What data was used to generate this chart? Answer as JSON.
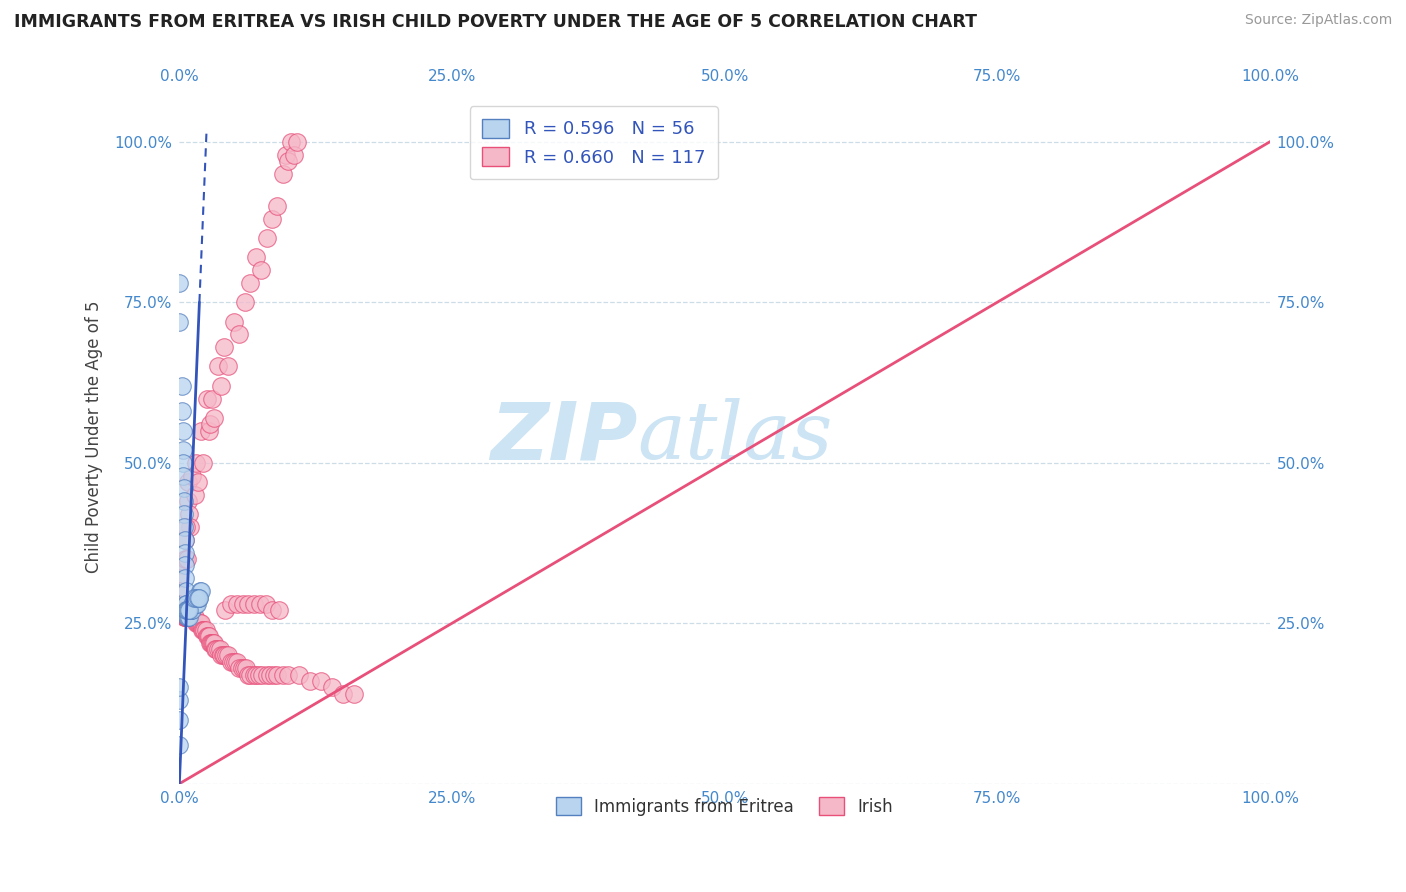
{
  "title": "IMMIGRANTS FROM ERITREA VS IRISH CHILD POVERTY UNDER THE AGE OF 5 CORRELATION CHART",
  "source": "Source: ZipAtlas.com",
  "ylabel": "Child Poverty Under the Age of 5",
  "legend_labels": [
    "Immigrants from Eritrea",
    "Irish"
  ],
  "eritrea_R": 0.596,
  "eritrea_N": 56,
  "irish_R": 0.66,
  "irish_N": 117,
  "eritrea_color": "#b8d4ee",
  "irish_color": "#f5b8c8",
  "eritrea_edge_color": "#5580c0",
  "irish_edge_color": "#e8507a",
  "eritrea_line_color": "#3355bb",
  "irish_line_color": "#e8507a",
  "background_color": "#ffffff",
  "watermark_color": "#cce4f4",
  "xlim": [
    0.0,
    1.0
  ],
  "ylim": [
    0.0,
    1.08
  ],
  "x_ticks": [
    0.0,
    0.25,
    0.5,
    0.75,
    1.0
  ],
  "y_ticks": [
    0.0,
    0.25,
    0.5,
    0.75,
    1.0
  ],
  "x_tick_labels": [
    "0.0%",
    "25.0%",
    "50.0%",
    "75.0%",
    "100.0%"
  ],
  "y_tick_labels": [
    "",
    "25.0%",
    "50.0%",
    "75.0%",
    "100.0%"
  ],
  "eritrea_line": [
    [
      0.0,
      0.0
    ],
    [
      0.025,
      1.02
    ]
  ],
  "irish_line": [
    [
      0.0,
      0.0
    ],
    [
      1.0,
      1.0
    ]
  ],
  "eritrea_points": [
    [
      0.0,
      0.78
    ],
    [
      0.0,
      0.72
    ],
    [
      0.002,
      0.62
    ],
    [
      0.002,
      0.58
    ],
    [
      0.003,
      0.55
    ],
    [
      0.003,
      0.52
    ],
    [
      0.003,
      0.5
    ],
    [
      0.003,
      0.48
    ],
    [
      0.004,
      0.46
    ],
    [
      0.004,
      0.44
    ],
    [
      0.004,
      0.42
    ],
    [
      0.004,
      0.4
    ],
    [
      0.005,
      0.38
    ],
    [
      0.005,
      0.36
    ],
    [
      0.005,
      0.34
    ],
    [
      0.005,
      0.32
    ],
    [
      0.006,
      0.3
    ],
    [
      0.006,
      0.28
    ],
    [
      0.006,
      0.28
    ],
    [
      0.007,
      0.27
    ],
    [
      0.007,
      0.27
    ],
    [
      0.007,
      0.26
    ],
    [
      0.008,
      0.26
    ],
    [
      0.008,
      0.27
    ],
    [
      0.009,
      0.27
    ],
    [
      0.009,
      0.26
    ],
    [
      0.01,
      0.27
    ],
    [
      0.01,
      0.27
    ],
    [
      0.01,
      0.27
    ],
    [
      0.011,
      0.27
    ],
    [
      0.011,
      0.27
    ],
    [
      0.012,
      0.27
    ],
    [
      0.012,
      0.28
    ],
    [
      0.013,
      0.28
    ],
    [
      0.013,
      0.28
    ],
    [
      0.014,
      0.28
    ],
    [
      0.014,
      0.28
    ],
    [
      0.015,
      0.28
    ],
    [
      0.016,
      0.28
    ],
    [
      0.016,
      0.29
    ],
    [
      0.017,
      0.29
    ],
    [
      0.018,
      0.29
    ],
    [
      0.019,
      0.3
    ],
    [
      0.02,
      0.3
    ],
    [
      0.0,
      0.06
    ],
    [
      0.0,
      0.1
    ],
    [
      0.0,
      0.13
    ],
    [
      0.0,
      0.15
    ],
    [
      0.006,
      0.27
    ],
    [
      0.007,
      0.27
    ],
    [
      0.008,
      0.27
    ],
    [
      0.009,
      0.27
    ],
    [
      0.013,
      0.29
    ],
    [
      0.015,
      0.29
    ],
    [
      0.017,
      0.29
    ],
    [
      0.018,
      0.29
    ]
  ],
  "irish_points": [
    [
      0.0,
      0.34
    ],
    [
      0.0,
      0.32
    ],
    [
      0.0,
      0.3
    ],
    [
      0.0,
      0.28
    ],
    [
      0.002,
      0.27
    ],
    [
      0.003,
      0.27
    ],
    [
      0.003,
      0.27
    ],
    [
      0.004,
      0.26
    ],
    [
      0.005,
      0.26
    ],
    [
      0.005,
      0.26
    ],
    [
      0.006,
      0.26
    ],
    [
      0.006,
      0.26
    ],
    [
      0.007,
      0.26
    ],
    [
      0.007,
      0.26
    ],
    [
      0.008,
      0.26
    ],
    [
      0.008,
      0.26
    ],
    [
      0.009,
      0.26
    ],
    [
      0.01,
      0.26
    ],
    [
      0.01,
      0.26
    ],
    [
      0.011,
      0.26
    ],
    [
      0.012,
      0.26
    ],
    [
      0.012,
      0.26
    ],
    [
      0.013,
      0.26
    ],
    [
      0.014,
      0.26
    ],
    [
      0.015,
      0.25
    ],
    [
      0.016,
      0.25
    ],
    [
      0.017,
      0.25
    ],
    [
      0.018,
      0.25
    ],
    [
      0.019,
      0.25
    ],
    [
      0.02,
      0.25
    ],
    [
      0.021,
      0.24
    ],
    [
      0.022,
      0.24
    ],
    [
      0.023,
      0.24
    ],
    [
      0.024,
      0.24
    ],
    [
      0.025,
      0.23
    ],
    [
      0.026,
      0.23
    ],
    [
      0.027,
      0.23
    ],
    [
      0.028,
      0.22
    ],
    [
      0.029,
      0.22
    ],
    [
      0.03,
      0.22
    ],
    [
      0.031,
      0.22
    ],
    [
      0.032,
      0.22
    ],
    [
      0.033,
      0.21
    ],
    [
      0.034,
      0.21
    ],
    [
      0.035,
      0.21
    ],
    [
      0.037,
      0.21
    ],
    [
      0.038,
      0.2
    ],
    [
      0.04,
      0.2
    ],
    [
      0.041,
      0.2
    ],
    [
      0.043,
      0.2
    ],
    [
      0.045,
      0.2
    ],
    [
      0.047,
      0.19
    ],
    [
      0.049,
      0.19
    ],
    [
      0.051,
      0.19
    ],
    [
      0.053,
      0.19
    ],
    [
      0.055,
      0.18
    ],
    [
      0.057,
      0.18
    ],
    [
      0.059,
      0.18
    ],
    [
      0.061,
      0.18
    ],
    [
      0.063,
      0.17
    ],
    [
      0.065,
      0.17
    ],
    [
      0.068,
      0.17
    ],
    [
      0.07,
      0.17
    ],
    [
      0.073,
      0.17
    ],
    [
      0.076,
      0.17
    ],
    [
      0.08,
      0.17
    ],
    [
      0.083,
      0.17
    ],
    [
      0.087,
      0.17
    ],
    [
      0.09,
      0.17
    ],
    [
      0.095,
      0.17
    ],
    [
      0.1,
      0.17
    ],
    [
      0.008,
      0.44
    ],
    [
      0.008,
      0.47
    ],
    [
      0.009,
      0.42
    ],
    [
      0.01,
      0.4
    ],
    [
      0.012,
      0.48
    ],
    [
      0.014,
      0.45
    ],
    [
      0.015,
      0.5
    ],
    [
      0.017,
      0.47
    ],
    [
      0.02,
      0.55
    ],
    [
      0.022,
      0.5
    ],
    [
      0.025,
      0.6
    ],
    [
      0.027,
      0.55
    ],
    [
      0.028,
      0.56
    ],
    [
      0.03,
      0.6
    ],
    [
      0.032,
      0.57
    ],
    [
      0.035,
      0.65
    ],
    [
      0.038,
      0.62
    ],
    [
      0.041,
      0.68
    ],
    [
      0.045,
      0.65
    ],
    [
      0.05,
      0.72
    ],
    [
      0.055,
      0.7
    ],
    [
      0.06,
      0.75
    ],
    [
      0.065,
      0.78
    ],
    [
      0.07,
      0.82
    ],
    [
      0.075,
      0.8
    ],
    [
      0.08,
      0.85
    ],
    [
      0.085,
      0.88
    ],
    [
      0.09,
      0.9
    ],
    [
      0.095,
      0.95
    ],
    [
      0.098,
      0.98
    ],
    [
      0.1,
      0.97
    ],
    [
      0.102,
      1.0
    ],
    [
      0.105,
      0.98
    ],
    [
      0.108,
      1.0
    ],
    [
      0.042,
      0.27
    ],
    [
      0.047,
      0.28
    ],
    [
      0.053,
      0.28
    ],
    [
      0.058,
      0.28
    ],
    [
      0.063,
      0.28
    ],
    [
      0.068,
      0.28
    ],
    [
      0.074,
      0.28
    ],
    [
      0.079,
      0.28
    ],
    [
      0.085,
      0.27
    ],
    [
      0.091,
      0.27
    ],
    [
      0.005,
      0.35
    ],
    [
      0.005,
      0.38
    ],
    [
      0.006,
      0.4
    ],
    [
      0.007,
      0.35
    ],
    [
      0.11,
      0.17
    ],
    [
      0.12,
      0.16
    ],
    [
      0.13,
      0.16
    ],
    [
      0.14,
      0.15
    ],
    [
      0.15,
      0.14
    ],
    [
      0.16,
      0.14
    ]
  ]
}
